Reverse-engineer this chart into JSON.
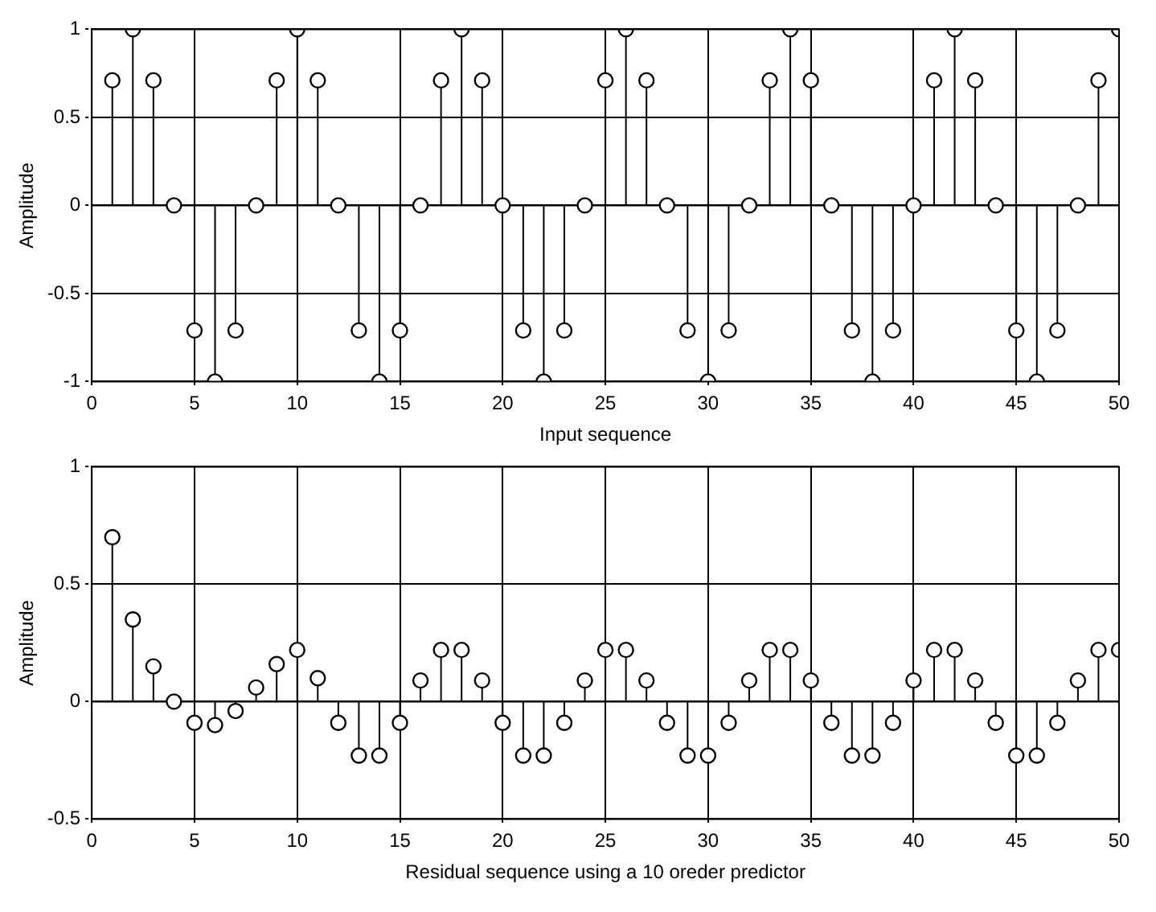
{
  "chart_data": [
    {
      "type": "lollipop",
      "xlabel": "Input sequence",
      "ylabel": "Amplitude",
      "marker": "circle",
      "grid": true,
      "color": "#000000",
      "x": [
        1,
        2,
        3,
        4,
        5,
        6,
        7,
        8,
        9,
        10,
        11,
        12,
        13,
        14,
        15,
        16,
        17,
        18,
        19,
        20,
        21,
        22,
        23,
        24,
        25,
        26,
        27,
        28,
        29,
        30,
        31,
        32,
        33,
        34,
        35,
        36,
        37,
        38,
        39,
        40,
        41,
        42,
        43,
        44,
        45,
        46,
        47,
        48,
        49,
        50
      ],
      "values": [
        0.71,
        1,
        0.71,
        0,
        -0.71,
        -1,
        -0.71,
        0,
        0.71,
        1,
        0.71,
        0,
        -0.71,
        -1,
        -0.71,
        0,
        0.71,
        1,
        0.71,
        0,
        -0.71,
        -1,
        -0.71,
        0,
        0.71,
        1,
        0.71,
        0,
        -0.71,
        -1,
        -0.71,
        0,
        0.71,
        1,
        0.71,
        0,
        -0.71,
        -1,
        -0.71,
        0,
        0.71,
        1,
        0.71,
        0,
        -0.71,
        -1,
        -0.71,
        0,
        0.71,
        1
      ],
      "xlim": [
        0,
        50
      ],
      "xticks": [
        0,
        5,
        10,
        15,
        20,
        25,
        30,
        35,
        40,
        45,
        50
      ],
      "ylim": [
        -1,
        1
      ],
      "yticks": [
        -1,
        -0.5,
        0,
        0.5,
        1
      ]
    },
    {
      "type": "lollipop",
      "xlabel": "Residual sequence using a 10 oreder predictor",
      "ylabel": "Amplitude",
      "marker": "circle",
      "grid": true,
      "color": "#000000",
      "x": [
        1,
        2,
        3,
        4,
        5,
        6,
        7,
        8,
        9,
        10,
        11,
        12,
        13,
        14,
        15,
        16,
        17,
        18,
        19,
        20,
        21,
        22,
        23,
        24,
        25,
        26,
        27,
        28,
        29,
        30,
        31,
        32,
        33,
        34,
        35,
        36,
        37,
        38,
        39,
        40,
        41,
        42,
        43,
        44,
        45,
        46,
        47,
        48,
        49,
        50
      ],
      "values": [
        0.7,
        0.35,
        0.15,
        0,
        -0.09,
        -0.1,
        -0.04,
        0.06,
        0.16,
        0.22,
        0.1,
        -0.09,
        -0.23,
        -0.23,
        -0.09,
        0.09,
        0.22,
        0.22,
        0.09,
        -0.09,
        -0.23,
        -0.23,
        -0.09,
        0.09,
        0.22,
        0.22,
        0.09,
        -0.09,
        -0.23,
        -0.23,
        -0.09,
        0.09,
        0.22,
        0.22,
        0.09,
        -0.09,
        -0.23,
        -0.23,
        -0.09,
        0.09,
        0.22,
        0.22,
        0.09,
        -0.09,
        -0.23,
        -0.23,
        -0.09,
        0.09,
        0.22,
        0.22
      ],
      "xlim": [
        0,
        50
      ],
      "xticks": [
        0,
        5,
        10,
        15,
        20,
        25,
        30,
        35,
        40,
        45,
        50
      ],
      "ylim": [
        -0.5,
        1
      ],
      "yticks": [
        -0.5,
        0,
        0.5,
        1
      ]
    }
  ]
}
